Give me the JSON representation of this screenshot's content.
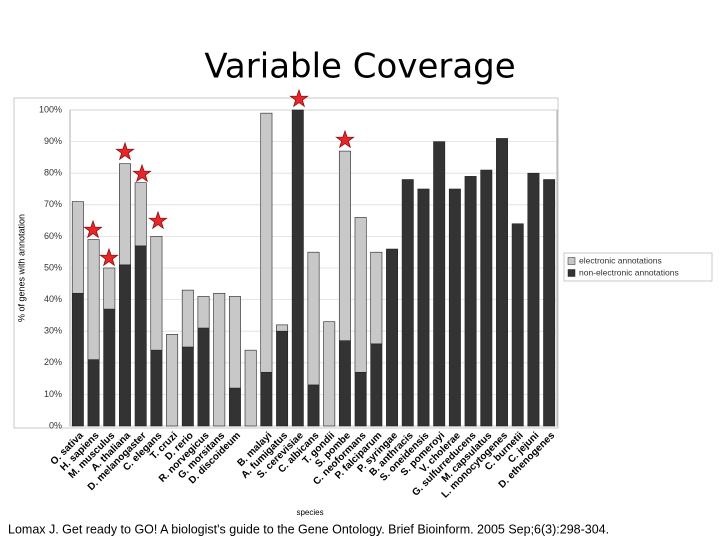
{
  "chart_data": {
    "type": "bar",
    "stacked": true,
    "title": "Variable Coverage",
    "y_label": "% of genes with annotation",
    "x_label": "species",
    "citation": "Lomax J. Get ready to GO! A biologist's guide to the Gene Ontology. Brief Bioinform. 2005 Sep;6(3):298-304.",
    "categories": [
      "O. sativa",
      "H. sapiens",
      "M. musculus",
      "A. thaliana",
      "D. melanogaster",
      "C. elegans",
      "T. cruzi",
      "D. rerio",
      "R. norvegicus",
      "G. morsitans",
      "D. discoideum",
      null,
      "B. malayi",
      "A. fumigatus",
      "S. cerevisiae",
      "C. albicans",
      "T. gondii",
      "S. pombe",
      "C. neoformans",
      "P. falciparum",
      "P. syringae",
      "B. anthracis",
      "S. oneidensis",
      "S. pomeroyi",
      "V. cholerae",
      "G. sulfurreducens",
      "M. capsulatus",
      "L. monocytogenes",
      "C. burnetii",
      "C. jejuni",
      "D. ethenogenes"
    ],
    "series": [
      {
        "name": "non-electronic annotations",
        "color": "#333333",
        "values": [
          42,
          21,
          37,
          51,
          57,
          24,
          0,
          25,
          31,
          0,
          12,
          0,
          17,
          30,
          100,
          13,
          0,
          27,
          17,
          26,
          56,
          78,
          75,
          90,
          75,
          79,
          81,
          91,
          64,
          80,
          78
        ]
      },
      {
        "name": "electronic annotations",
        "color": "#c8c8c8",
        "values": [
          29,
          38,
          13,
          32,
          20,
          36,
          29,
          18,
          10,
          42,
          29,
          24,
          82,
          2,
          0,
          42,
          33,
          60,
          49,
          29,
          0,
          0,
          0,
          0,
          0,
          0,
          0,
          0,
          0,
          0,
          0
        ]
      }
    ],
    "legend_order": [
      1,
      0
    ],
    "ylim": [
      0,
      100
    ],
    "yticks": [
      {
        "value": 0,
        "label": "0%"
      },
      {
        "value": 10,
        "label": "10%"
      },
      {
        "value": 20,
        "label": "20%"
      },
      {
        "value": 30,
        "label": "30%"
      },
      {
        "value": 40,
        "label": "40%"
      },
      {
        "value": 50,
        "label": "50%"
      },
      {
        "value": 60,
        "label": "60%"
      },
      {
        "value": 70,
        "label": "70%"
      },
      {
        "value": 80,
        "label": "80%"
      },
      {
        "value": 90,
        "label": "90%"
      },
      {
        "value": 100,
        "label": "100%"
      }
    ]
  }
}
